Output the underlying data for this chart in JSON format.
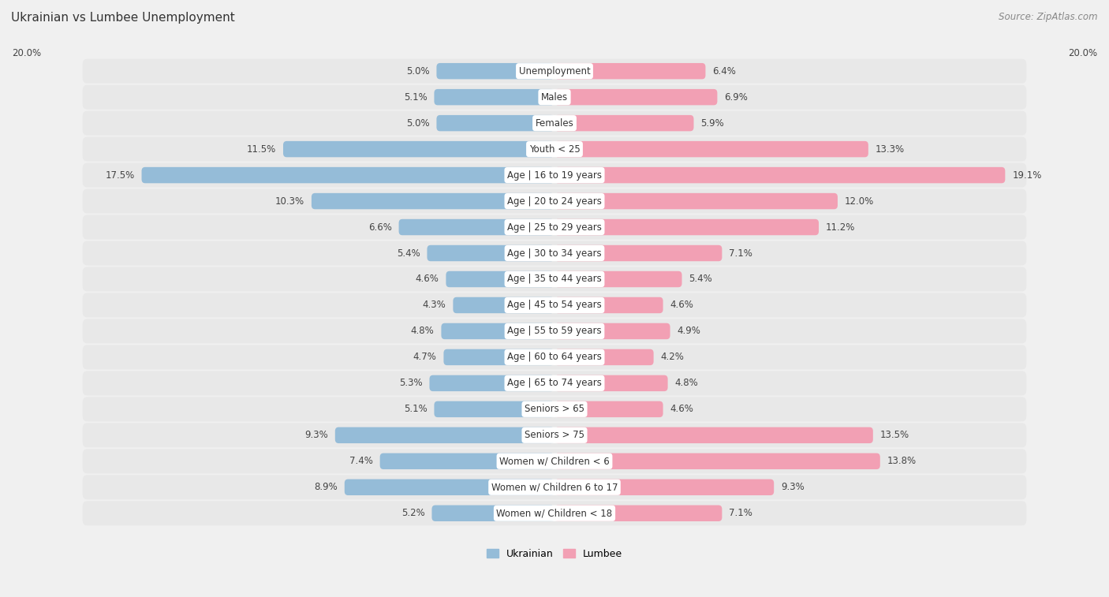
{
  "title": "Ukrainian vs Lumbee Unemployment",
  "source": "Source: ZipAtlas.com",
  "categories": [
    "Unemployment",
    "Males",
    "Females",
    "Youth < 25",
    "Age | 16 to 19 years",
    "Age | 20 to 24 years",
    "Age | 25 to 29 years",
    "Age | 30 to 34 years",
    "Age | 35 to 44 years",
    "Age | 45 to 54 years",
    "Age | 55 to 59 years",
    "Age | 60 to 64 years",
    "Age | 65 to 74 years",
    "Seniors > 65",
    "Seniors > 75",
    "Women w/ Children < 6",
    "Women w/ Children 6 to 17",
    "Women w/ Children < 18"
  ],
  "ukrainian": [
    5.0,
    5.1,
    5.0,
    11.5,
    17.5,
    10.3,
    6.6,
    5.4,
    4.6,
    4.3,
    4.8,
    4.7,
    5.3,
    5.1,
    9.3,
    7.4,
    8.9,
    5.2
  ],
  "lumbee": [
    6.4,
    6.9,
    5.9,
    13.3,
    19.1,
    12.0,
    11.2,
    7.1,
    5.4,
    4.6,
    4.9,
    4.2,
    4.8,
    4.6,
    13.5,
    13.8,
    9.3,
    7.1
  ],
  "ukrainian_color": "#95bcd8",
  "lumbee_color": "#f2a0b4",
  "ukrainian_label": "Ukrainian",
  "lumbee_label": "Lumbee",
  "axis_max": 20.0,
  "bg_color": "#f0f0f0",
  "row_bg_color": "#e0e0e0",
  "bar_row_color": "#e8e8e8",
  "label_fontsize": 8.5,
  "title_fontsize": 11,
  "source_fontsize": 8.5
}
